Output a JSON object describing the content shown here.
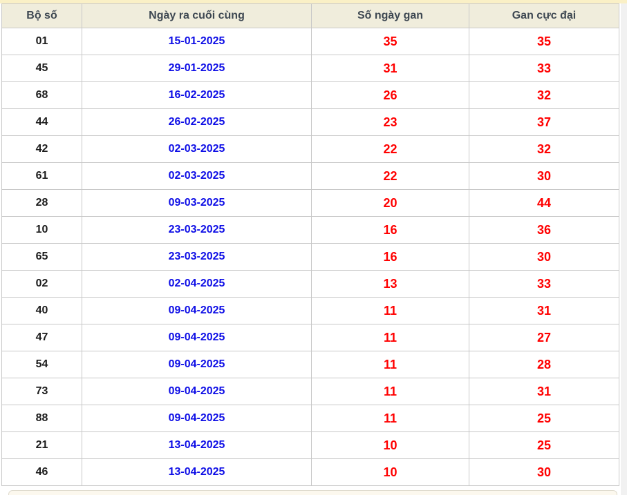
{
  "page": {
    "top_strip_color": "#FAF0C6",
    "side_strip_color": "#F1F1F1",
    "bottom_panel_color": "#FCF8EE"
  },
  "table": {
    "headers": [
      "Bộ số",
      "Ngày ra cuối cùng",
      "Số ngày gan",
      "Gan cực đại"
    ],
    "header_bg": "#F0EDDC",
    "header_text_color": "#3E4852",
    "number_color": "#1C1C1C",
    "date_color": "#0E0EE6",
    "gan_color": "#FF0000",
    "border_color": "#C8C8C8",
    "rows": [
      {
        "number": "01",
        "date": "15-01-2025",
        "gan": "35",
        "max": "35"
      },
      {
        "number": "45",
        "date": "29-01-2025",
        "gan": "31",
        "max": "33"
      },
      {
        "number": "68",
        "date": "16-02-2025",
        "gan": "26",
        "max": "32"
      },
      {
        "number": "44",
        "date": "26-02-2025",
        "gan": "23",
        "max": "37"
      },
      {
        "number": "42",
        "date": "02-03-2025",
        "gan": "22",
        "max": "32"
      },
      {
        "number": "61",
        "date": "02-03-2025",
        "gan": "22",
        "max": "30"
      },
      {
        "number": "28",
        "date": "09-03-2025",
        "gan": "20",
        "max": "44"
      },
      {
        "number": "10",
        "date": "23-03-2025",
        "gan": "16",
        "max": "36"
      },
      {
        "number": "65",
        "date": "23-03-2025",
        "gan": "16",
        "max": "30"
      },
      {
        "number": "02",
        "date": "02-04-2025",
        "gan": "13",
        "max": "33"
      },
      {
        "number": "40",
        "date": "09-04-2025",
        "gan": "11",
        "max": "31"
      },
      {
        "number": "47",
        "date": "09-04-2025",
        "gan": "11",
        "max": "27"
      },
      {
        "number": "54",
        "date": "09-04-2025",
        "gan": "11",
        "max": "28"
      },
      {
        "number": "73",
        "date": "09-04-2025",
        "gan": "11",
        "max": "31"
      },
      {
        "number": "88",
        "date": "09-04-2025",
        "gan": "11",
        "max": "25"
      },
      {
        "number": "21",
        "date": "13-04-2025",
        "gan": "10",
        "max": "25"
      },
      {
        "number": "46",
        "date": "13-04-2025",
        "gan": "10",
        "max": "30"
      }
    ]
  }
}
